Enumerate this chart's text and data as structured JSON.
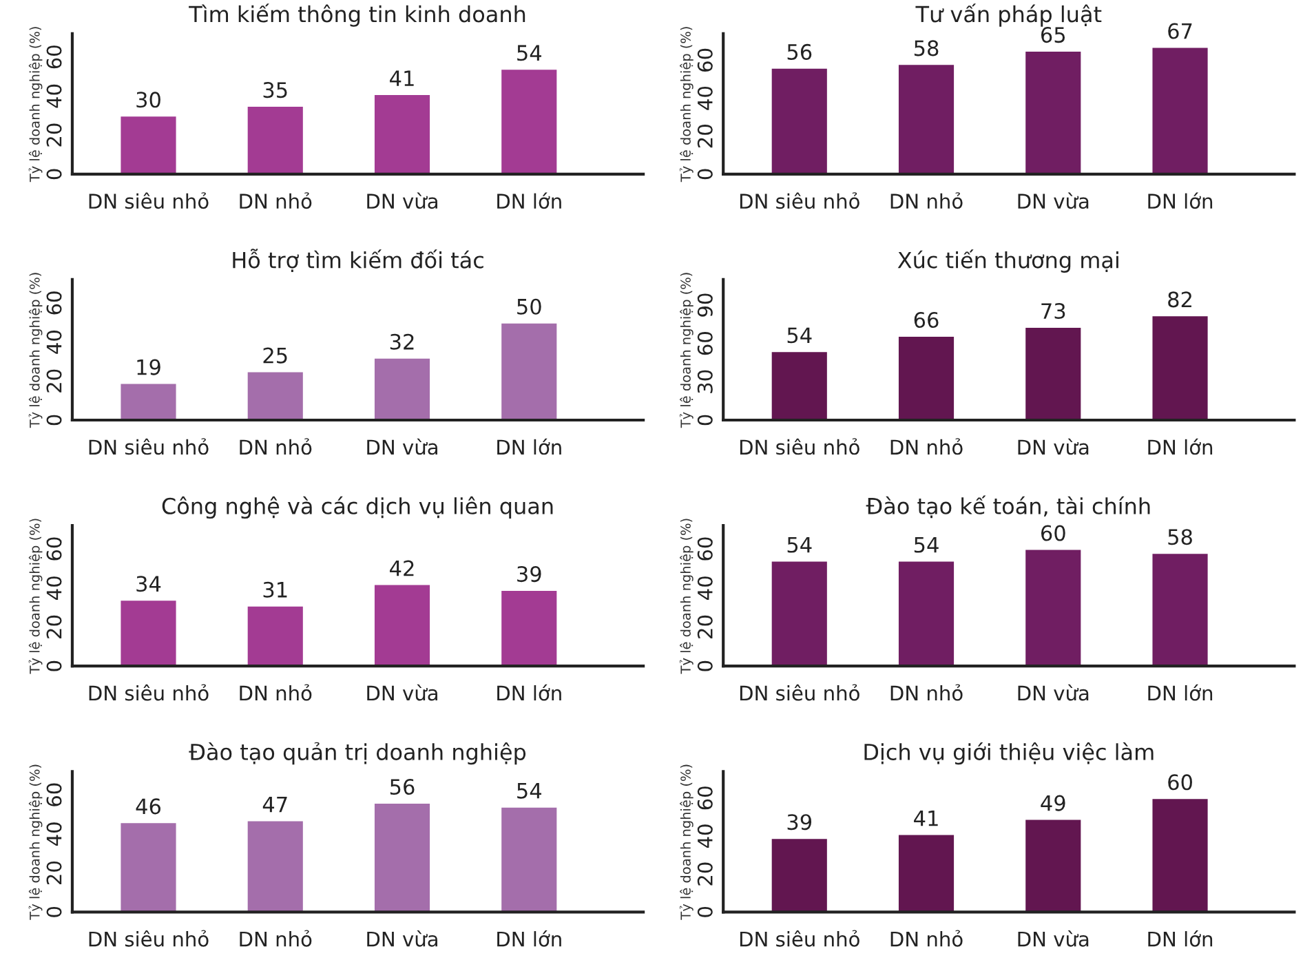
{
  "chart_data": [
    {
      "type": "bar",
      "title": "Tìm kiếm thông tin kinh doanh",
      "ylabel": "Tỷ lệ doanh nghiệp (%)",
      "categories": [
        "DN siêu nhỏ",
        "DN nhỏ",
        "DN vừa",
        "DN lớn"
      ],
      "values": [
        30,
        35,
        41,
        54
      ],
      "color": "#a33b93",
      "ylim": [
        0,
        72
      ],
      "yticks": [
        0,
        20,
        40,
        60
      ],
      "data_labels": true,
      "grid": false,
      "legend": false
    },
    {
      "type": "bar",
      "title": "Tư vấn pháp luật",
      "ylabel": "Tỷ lệ doanh nghiệp (%)",
      "categories": [
        "DN siêu nhỏ",
        "DN nhỏ",
        "DN vừa",
        "DN lớn"
      ],
      "values": [
        56,
        58,
        65,
        67
      ],
      "color": "#701e62",
      "ylim": [
        0,
        74
      ],
      "yticks": [
        0,
        20,
        40,
        60
      ],
      "data_labels": true,
      "grid": false,
      "legend": false
    },
    {
      "type": "bar",
      "title": "Hỗ trợ tìm kiếm đối tác",
      "ylabel": "Tỷ lệ doanh nghiệp (%)",
      "categories": [
        "DN siêu nhỏ",
        "DN nhỏ",
        "DN vừa",
        "DN lớn"
      ],
      "values": [
        19,
        25,
        32,
        50
      ],
      "color": "#a46eab",
      "ylim": [
        0,
        72
      ],
      "yticks": [
        0,
        20,
        40,
        60
      ],
      "data_labels": true,
      "grid": false,
      "legend": false
    },
    {
      "type": "bar",
      "title": "Xúc tiến thương mại",
      "ylabel": "Tỷ lệ doanh nghiệp (%)",
      "categories": [
        "DN siêu nhỏ",
        "DN nhỏ",
        "DN vừa",
        "DN lớn"
      ],
      "values": [
        54,
        66,
        73,
        82
      ],
      "color": "#621650",
      "ylim": [
        0,
        110
      ],
      "yticks": [
        0,
        30,
        60,
        90
      ],
      "data_labels": true,
      "grid": false,
      "legend": false
    },
    {
      "type": "bar",
      "title": "Công nghệ và các dịch vụ liên quan",
      "ylabel": "Tỷ lệ doanh nghiệp (%)",
      "categories": [
        "DN siêu nhỏ",
        "DN nhỏ",
        "DN vừa",
        "DN lớn"
      ],
      "values": [
        34,
        31,
        42,
        39
      ],
      "color": "#a33b93",
      "ylim": [
        0,
        72
      ],
      "yticks": [
        0,
        20,
        40,
        60
      ],
      "data_labels": true,
      "grid": false,
      "legend": false
    },
    {
      "type": "bar",
      "title": "Đào tạo kế toán, tài chính",
      "ylabel": "Tỷ lệ doanh nghiệp (%)",
      "categories": [
        "DN siêu nhỏ",
        "DN nhỏ",
        "DN vừa",
        "DN lớn"
      ],
      "values": [
        54,
        54,
        60,
        58
      ],
      "color": "#701e62",
      "ylim": [
        0,
        72
      ],
      "yticks": [
        0,
        20,
        40,
        60
      ],
      "data_labels": true,
      "grid": false,
      "legend": false
    },
    {
      "type": "bar",
      "title": "Đào tạo quản trị doanh nghiệp",
      "ylabel": "Tỷ lệ doanh nghiệp (%)",
      "categories": [
        "DN siêu nhỏ",
        "DN nhỏ",
        "DN vừa",
        "DN lớn"
      ],
      "values": [
        46,
        47,
        56,
        54
      ],
      "color": "#a46eab",
      "ylim": [
        0,
        72
      ],
      "yticks": [
        0,
        20,
        40,
        60
      ],
      "data_labels": true,
      "grid": false,
      "legend": false
    },
    {
      "type": "bar",
      "title": "Dịch vụ giới thiệu việc làm",
      "ylabel": "Tỷ lệ doanh nghiệp (%)",
      "categories": [
        "DN siêu nhỏ",
        "DN nhỏ",
        "DN vừa",
        "DN lớn"
      ],
      "values": [
        39,
        41,
        49,
        60
      ],
      "color": "#621650",
      "ylim": [
        0,
        74
      ],
      "yticks": [
        0,
        20,
        40,
        60
      ],
      "data_labels": true,
      "grid": false,
      "legend": false
    }
  ]
}
